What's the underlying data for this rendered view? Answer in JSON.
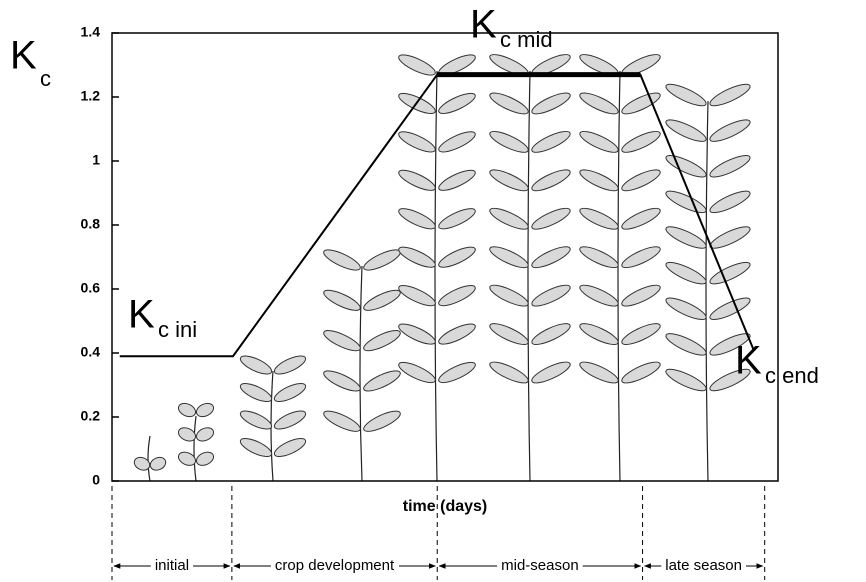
{
  "chart_data": {
    "type": "line",
    "y_label": {
      "main": "K",
      "sub": "c"
    },
    "x_label": "time (days)",
    "xlim": [
      0,
      60
    ],
    "ylim": [
      0,
      1.4
    ],
    "yticks": [
      0,
      0.2,
      0.4,
      0.6,
      0.8,
      1,
      1.2,
      1.4
    ],
    "series": [
      {
        "color": "#000000",
        "x": [
          0.7,
          10.9,
          29.3,
          47.6,
          57.8
        ],
        "values": [
          0.39,
          0.39,
          1.27,
          1.27,
          0.41
        ]
      }
    ],
    "annotations": [
      {
        "main": "K",
        "sub": "c ini"
      },
      {
        "main": "K",
        "sub": "c mid"
      },
      {
        "main": "K",
        "sub": "c end"
      }
    ],
    "stage_boundaries": [
      0,
      10.8,
      29.3,
      47.8,
      58.8
    ],
    "stages": [
      "initial",
      "crop development",
      "mid-season",
      "late season"
    ]
  }
}
